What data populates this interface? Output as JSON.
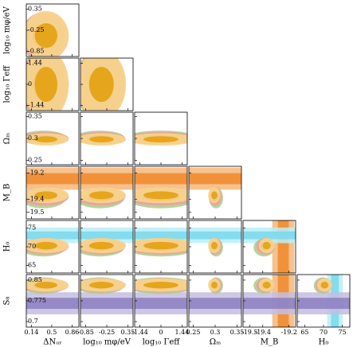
{
  "chart_data": {
    "type": "corner",
    "params": [
      {
        "label": "ΔNᵤᵣ",
        "lim": [
          0.05,
          0.98
        ],
        "ticks": [
          0.14,
          0.5,
          0.86
        ]
      },
      {
        "label": "log₁₀ mφ/eV",
        "lim": [
          -1.0,
          0.5
        ],
        "ticks": [
          -0.85,
          -0.25,
          0.35
        ]
      },
      {
        "label": "log₁₀ Γeff",
        "lim": [
          -1.8,
          1.8
        ],
        "ticks": [
          -1.44,
          0,
          1.44
        ]
      },
      {
        "label": "Ωₘ",
        "lim": [
          0.24,
          0.36
        ],
        "ticks": [
          0.25,
          0.3,
          0.35
        ]
      },
      {
        "label": "M_B",
        "lim": [
          -19.55,
          -19.15
        ],
        "ticks": [
          -19.5,
          -19.4,
          -19.2
        ]
      },
      {
        "label": "H₀",
        "lim": [
          63,
          77
        ],
        "ticks": [
          65,
          70,
          75
        ]
      },
      {
        "label": "S₈",
        "lim": [
          0.68,
          0.87
        ],
        "ticks": [
          0.7,
          0.775,
          0.85
        ]
      }
    ],
    "series": [
      {
        "color": "#4d9a3a",
        "light": "#a9d18e",
        "mean": [
          0.35,
          -0.45,
          0,
          0.302,
          -19.39,
          69.8,
          0.83
        ],
        "sigma": [
          0.2,
          0.35,
          1.2,
          0.008,
          0.04,
          1.2,
          0.015
        ]
      },
      {
        "color": "#d2372c",
        "light": "#eea0a0",
        "mean": [
          0.38,
          -0.42,
          0,
          0.3,
          -19.38,
          70.1,
          0.831
        ],
        "sigma": [
          0.21,
          0.35,
          1.2,
          0.0075,
          0.035,
          1.1,
          0.013
        ]
      },
      {
        "color": "#e3a20f",
        "light": "#f7d68c",
        "mean": [
          0.4,
          -0.4,
          0,
          0.298,
          -19.37,
          70.3,
          0.832
        ],
        "sigma": [
          0.2,
          0.35,
          1.2,
          0.007,
          0.03,
          1.0,
          0.012
        ]
      }
    ],
    "bands": [
      {
        "param": 4,
        "center": -19.244,
        "sigma": 0.042,
        "color": "#f08a2c",
        "light": "#f6b679"
      },
      {
        "param": 5,
        "center": 73.04,
        "sigma": 1.04,
        "color": "#79d8ec",
        "light": "#b9eef7"
      },
      {
        "param": 6,
        "center": 0.766,
        "sigma": 0.02,
        "color": "#8b7fc0",
        "light": "#c4bde0"
      }
    ]
  }
}
